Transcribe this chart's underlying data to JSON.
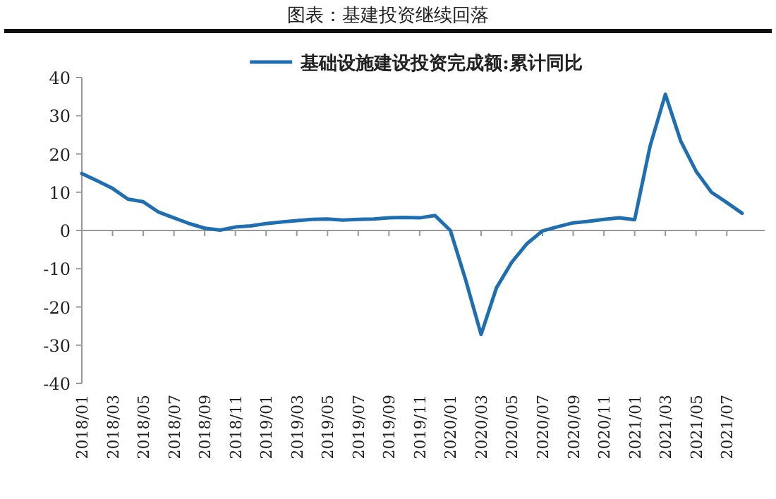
{
  "chart_data": {
    "type": "line",
    "title": "图表：基建投资继续回落",
    "categories": [
      "2018/01",
      null,
      "2018/03",
      null,
      "2018/05",
      null,
      "2018/07",
      null,
      "2018/09",
      null,
      "2018/11",
      null,
      "2019/01",
      null,
      "2019/03",
      null,
      "2019/05",
      null,
      "2019/07",
      null,
      "2019/09",
      null,
      "2019/11",
      null,
      "2020/01",
      null,
      "2020/03",
      null,
      "2020/05",
      null,
      "2020/07",
      null,
      "2020/09",
      null,
      "2020/11",
      null,
      "2021/01",
      null,
      "2021/03",
      null,
      "2021/05",
      null,
      "2021/07",
      null
    ],
    "series": [
      {
        "name": "基础设施建设投资完成额:累计同比",
        "color": "#1f6fb0",
        "values": [
          14.9,
          13,
          11,
          8.2,
          7.5,
          4.8,
          3.3,
          1.8,
          0.6,
          0.1,
          0.9,
          1.2,
          1.8,
          2.2,
          2.6,
          2.9,
          3.0,
          2.7,
          2.9,
          3.0,
          3.3,
          3.4,
          3.3,
          3.9,
          0,
          -13,
          -27.2,
          -15,
          -8.3,
          -3.4,
          -0.1,
          1.0,
          2.0,
          2.4,
          2.9,
          3.3,
          2.8,
          22,
          35.6,
          23.4,
          15.5,
          10,
          7.3,
          4.5
        ]
      }
    ],
    "ylim": [
      -40,
      40
    ],
    "yticks": [
      -40,
      -30,
      -20,
      -10,
      0,
      10,
      20,
      30,
      40
    ],
    "legend": "top"
  }
}
